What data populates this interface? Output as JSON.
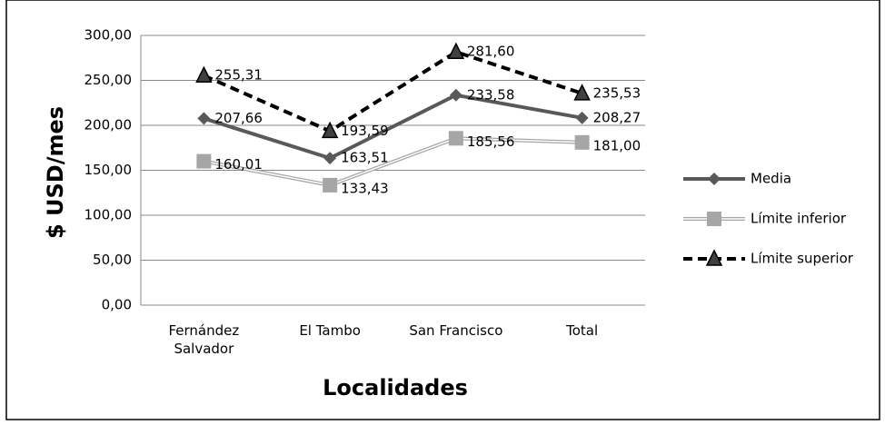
{
  "chart_data": {
    "type": "line",
    "x_label": "Localidades",
    "y_label": "$ USD/mes",
    "categories": [
      "Fernández Salvador",
      "El Tambo",
      "San Francisco",
      "Total"
    ],
    "series": [
      {
        "name": "Media",
        "color": "#595959",
        "values": [
          207.66,
          163.51,
          233.58,
          208.27
        ],
        "value_labels": [
          "207,66",
          "163,51",
          "233,58",
          "208,27"
        ]
      },
      {
        "name": "Límite inferior",
        "color": "#a6a6a6",
        "values": [
          160.01,
          133.43,
          185.56,
          181.0
        ],
        "value_labels": [
          "160,01",
          "133,43",
          "185,56",
          "181,00"
        ]
      },
      {
        "name": "Límite superior",
        "color": "#000000",
        "values": [
          255.31,
          193.59,
          281.6,
          235.53
        ],
        "value_labels": [
          "255,31",
          "193,59",
          "281,60",
          "235,53"
        ]
      }
    ],
    "ylim": [
      0,
      300
    ],
    "yticks": [
      {
        "value": 0,
        "label": "0,00"
      },
      {
        "value": 50,
        "label": "50,00"
      },
      {
        "value": 100,
        "label": "100,00"
      },
      {
        "value": 150,
        "label": "150,00"
      },
      {
        "value": 200,
        "label": "200,00"
      },
      {
        "value": 250,
        "label": "250,00"
      },
      {
        "value": 300,
        "label": "300,00"
      }
    ],
    "grid": true,
    "legend": "right"
  }
}
